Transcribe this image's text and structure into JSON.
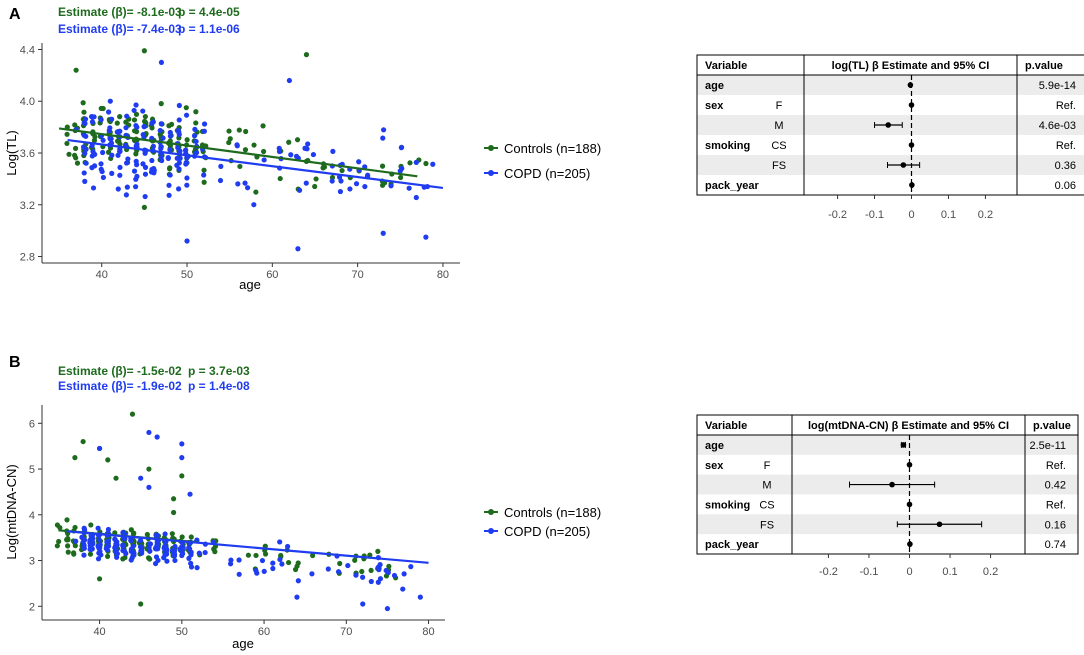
{
  "colors": {
    "controls": "#1e6b1e",
    "copd": "#1f3cf0",
    "ci": "#000000",
    "stripe": "#ececec",
    "axis": "#333333"
  },
  "chart_data": [
    {
      "id": "A",
      "panel_letter": "A",
      "type": "scatter",
      "annotations": [
        {
          "series": "controls",
          "estimate": "Estimate (β)= -8.1e-03",
          "p": "p = 4.4e-05"
        },
        {
          "series": "copd",
          "estimate": "Estimate (β)= -7.4e-03",
          "p": "p = 1.1e-06"
        }
      ],
      "xlabel": "age",
      "ylabel": "Log(TL)",
      "xlim": [
        33,
        82
      ],
      "ylim": [
        2.75,
        4.45
      ],
      "xticks": [
        40,
        50,
        60,
        70,
        80
      ],
      "yticks": [
        2.8,
        3.2,
        3.6,
        4.0,
        4.4
      ],
      "ytick_labels": [
        "2.8",
        "3.2",
        "3.6",
        "4.0",
        "4.4"
      ],
      "series": [
        {
          "key": "controls",
          "name": "Controls (n=188)",
          "fit": [
            [
              35,
              3.79
            ],
            [
              77,
              3.42
            ]
          ],
          "n": 188,
          "seed": 11,
          "x_range": [
            35,
            78
          ],
          "x_peak": [
            36,
            52
          ],
          "center": 3.77,
          "slope": -0.0081,
          "spread": 0.16,
          "outliers": [
            [
              45,
              4.39
            ],
            [
              64,
              4.36
            ],
            [
              37,
              4.24
            ],
            [
              45,
              3.18
            ]
          ]
        },
        {
          "key": "copd",
          "name": "COPD (n=205)",
          "fit": [
            [
              36,
              3.7
            ],
            [
              80,
              3.33
            ]
          ],
          "n": 205,
          "seed": 29,
          "x_range": [
            36,
            80
          ],
          "x_peak": [
            38,
            52
          ],
          "center": 3.7,
          "slope": -0.0074,
          "spread": 0.22,
          "outliers": [
            [
              47,
              4.3
            ],
            [
              62,
              4.16
            ],
            [
              50,
              2.92
            ],
            [
              63,
              2.86
            ],
            [
              73,
              2.98
            ],
            [
              78,
              2.95
            ]
          ]
        }
      ],
      "table": {
        "headers": [
          "Variable",
          "log(TL) β Estimate and 95% CI",
          "p.value"
        ],
        "xaxis": {
          "lim": [
            -0.28,
            0.28
          ],
          "ticks": [
            -0.2,
            -0.1,
            0,
            0.1,
            0.2
          ],
          "tick_labels": [
            "-0.2",
            "-0.1",
            "0",
            "0.1",
            "0.2"
          ]
        },
        "rows": [
          {
            "var": "age",
            "level": "",
            "est": -0.003,
            "lo": -0.004,
            "hi": -0.002,
            "p": "5.9e-14"
          },
          {
            "var": "sex",
            "level": "F",
            "est": 0,
            "lo": 0,
            "hi": 0,
            "p": "Ref."
          },
          {
            "var": "",
            "level": "M",
            "est": -0.063,
            "lo": -0.1,
            "hi": -0.025,
            "p": "4.6e-03"
          },
          {
            "var": "smoking",
            "level": "CS",
            "est": 0,
            "lo": 0,
            "hi": 0,
            "p": "Ref."
          },
          {
            "var": "",
            "level": "FS",
            "est": -0.022,
            "lo": -0.065,
            "hi": 0.022,
            "p": "0.36"
          },
          {
            "var": "pack_year",
            "level": "",
            "est": 0.001,
            "lo": 0,
            "hi": 0.002,
            "p": "0.06"
          }
        ]
      }
    },
    {
      "id": "B",
      "panel_letter": "B",
      "type": "scatter",
      "annotations": [
        {
          "series": "controls",
          "estimate": "Estimate (β)= -1.5e-02",
          "p": "p = 3.7e-03"
        },
        {
          "series": "copd",
          "estimate": "Estimate (β)= -1.9e-02",
          "p": "p = 1.4e-08"
        }
      ],
      "xlabel": "age",
      "ylabel": "Log(mtDNA-CN)",
      "xlim": [
        33,
        82
      ],
      "ylim": [
        1.7,
        6.4
      ],
      "xticks": [
        40,
        50,
        60,
        70,
        80
      ],
      "yticks": [
        2,
        3,
        4,
        5,
        6
      ],
      "ytick_labels": [
        "2",
        "3",
        "4",
        "5",
        "6"
      ],
      "series": [
        {
          "key": "controls",
          "name": "Controls (n=188)",
          "fit": [
            [
              35,
              3.66
            ],
            [
              52,
              3.4
            ]
          ],
          "n": 188,
          "seed": 41,
          "x_range": [
            35,
            76
          ],
          "x_peak": [
            35,
            51
          ],
          "center": 3.5,
          "slope": -0.015,
          "spread": 0.23,
          "outliers": [
            [
              44,
              6.2
            ],
            [
              38,
              5.6
            ],
            [
              37,
              5.25
            ],
            [
              40,
              5.45
            ],
            [
              41,
              5.2
            ],
            [
              46,
              5.0
            ],
            [
              42,
              4.8
            ],
            [
              49,
              4.35
            ],
            [
              50,
              4.85
            ],
            [
              40,
              2.6
            ],
            [
              45,
              2.05
            ],
            [
              49,
              4.05
            ]
          ]
        },
        {
          "key": "copd",
          "name": "COPD (n=205)",
          "fit": [
            [
              36,
              3.64
            ],
            [
              80,
              2.95
            ]
          ],
          "n": 205,
          "seed": 57,
          "x_range": [
            36,
            80
          ],
          "x_peak": [
            38,
            52
          ],
          "center": 3.45,
          "slope": -0.019,
          "spread": 0.25,
          "outliers": [
            [
              46,
              5.8
            ],
            [
              47,
              5.7
            ],
            [
              50,
              5.55
            ],
            [
              40,
              5.45
            ],
            [
              50,
              5.25
            ],
            [
              45,
              4.8
            ],
            [
              46,
              4.6
            ],
            [
              51,
              4.45
            ],
            [
              75,
              1.95
            ],
            [
              72,
              2.05
            ],
            [
              79,
              2.2
            ],
            [
              64,
              2.2
            ]
          ]
        }
      ],
      "table": {
        "headers": [
          "Variable",
          "log(mtDNA-CN) β Estimate and 95% CI",
          "p.value"
        ],
        "xaxis": {
          "lim": [
            -0.28,
            0.28
          ],
          "ticks": [
            -0.2,
            -0.1,
            0,
            0.1,
            0.2
          ],
          "tick_labels": [
            "-0.2",
            "-0.1",
            "0",
            "0.1",
            "0.2"
          ]
        },
        "rows": [
          {
            "var": "age",
            "level": "",
            "est": -0.015,
            "lo": -0.02,
            "hi": -0.01,
            "p": "2.5e-11"
          },
          {
            "var": "sex",
            "level": "F",
            "est": 0,
            "lo": 0,
            "hi": 0,
            "p": "Ref."
          },
          {
            "var": "",
            "level": "M",
            "est": -0.043,
            "lo": -0.148,
            "hi": 0.062,
            "p": "0.42"
          },
          {
            "var": "smoking",
            "level": "CS",
            "est": 0,
            "lo": 0,
            "hi": 0,
            "p": "Ref."
          },
          {
            "var": "",
            "level": "FS",
            "est": 0.074,
            "lo": -0.03,
            "hi": 0.178,
            "p": "0.16"
          },
          {
            "var": "pack_year",
            "level": "",
            "est": 0.001,
            "lo": 0,
            "hi": 0.002,
            "p": "0.74"
          }
        ]
      }
    }
  ]
}
